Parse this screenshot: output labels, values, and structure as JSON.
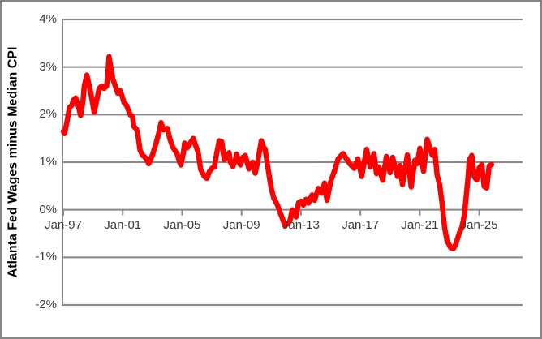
{
  "frame": {
    "background": "#FFFFFF",
    "border_color": "#878787"
  },
  "chart_data": {
    "type": "line",
    "title": "",
    "xlabel": "",
    "ylabel": "Atlanta Fed Wages minus Median CPI",
    "grid": true,
    "legend": "none",
    "ylim": [
      -2,
      4
    ],
    "x_range_months": [
      0,
      371
    ],
    "y_ticks": [
      {
        "value": 4,
        "label": "4%"
      },
      {
        "value": 3,
        "label": "3%"
      },
      {
        "value": 2,
        "label": "2%"
      },
      {
        "value": 1,
        "label": "1%"
      },
      {
        "value": 0,
        "label": "0%"
      },
      {
        "value": -1,
        "label": "-1%"
      },
      {
        "value": -2,
        "label": "-2%"
      }
    ],
    "x_ticks": [
      {
        "month": 0,
        "label": "Jan-97"
      },
      {
        "month": 48,
        "label": "Jan-01"
      },
      {
        "month": 96,
        "label": "Jan-05"
      },
      {
        "month": 144,
        "label": "Jan-09"
      },
      {
        "month": 192,
        "label": "Jan-13"
      },
      {
        "month": 240,
        "label": "Jan-17"
      },
      {
        "month": 288,
        "label": "Jan-21"
      },
      {
        "month": 336,
        "label": "Jan-25"
      }
    ],
    "style": {
      "line_color": "#FF0000",
      "line_width": 6.5,
      "grid_color": "#878787",
      "axis_color": "#878787",
      "text_color": "#3A3A3A"
    },
    "series": [
      {
        "name": "Atlanta Fed Wages minus Median CPI",
        "x_unit": "months since Jan-1997",
        "y_unit": "percent",
        "points": [
          [
            0,
            1.65
          ],
          [
            1,
            1.6
          ],
          [
            3,
            1.85
          ],
          [
            5,
            2.15
          ],
          [
            7,
            2.2
          ],
          [
            8,
            2.3
          ],
          [
            10,
            2.35
          ],
          [
            12,
            2.2
          ],
          [
            14,
            1.98
          ],
          [
            16,
            2.3
          ],
          [
            17,
            2.6
          ],
          [
            19,
            2.83
          ],
          [
            21,
            2.6
          ],
          [
            22,
            2.48
          ],
          [
            25,
            2.05
          ],
          [
            27,
            2.3
          ],
          [
            29,
            2.55
          ],
          [
            31,
            2.6
          ],
          [
            33,
            2.55
          ],
          [
            35,
            2.6
          ],
          [
            36,
            2.85
          ],
          [
            37,
            3.22
          ],
          [
            38,
            3.05
          ],
          [
            40,
            2.75
          ],
          [
            42,
            2.6
          ],
          [
            44,
            2.45
          ],
          [
            46,
            2.5
          ],
          [
            48,
            2.35
          ],
          [
            49,
            2.25
          ],
          [
            51,
            2.2
          ],
          [
            54,
            2.0
          ],
          [
            56,
            1.95
          ],
          [
            57,
            1.75
          ],
          [
            59,
            1.7
          ],
          [
            60,
            1.63
          ],
          [
            62,
            1.25
          ],
          [
            64,
            1.15
          ],
          [
            67,
            1.08
          ],
          [
            69,
            0.97
          ],
          [
            72,
            1.15
          ],
          [
            75,
            1.4
          ],
          [
            77,
            1.6
          ],
          [
            79,
            1.83
          ],
          [
            81,
            1.68
          ],
          [
            83,
            1.7
          ],
          [
            84,
            1.71
          ],
          [
            86,
            1.5
          ],
          [
            88,
            1.34
          ],
          [
            90,
            1.25
          ],
          [
            92,
            1.17
          ],
          [
            94,
            1.0
          ],
          [
            95,
            0.94
          ],
          [
            97,
            1.2
          ],
          [
            98,
            1.4
          ],
          [
            100,
            1.3
          ],
          [
            102,
            1.38
          ],
          [
            105,
            1.5
          ],
          [
            107,
            1.35
          ],
          [
            109,
            1.2
          ],
          [
            111,
            0.85
          ],
          [
            114,
            0.7
          ],
          [
            116,
            0.66
          ],
          [
            118,
            0.8
          ],
          [
            120,
            0.87
          ],
          [
            122,
            0.9
          ],
          [
            124,
            1.2
          ],
          [
            126,
            1.45
          ],
          [
            128,
            1.43
          ],
          [
            130,
            1.05
          ],
          [
            132,
            1.1
          ],
          [
            134,
            1.2
          ],
          [
            135,
            1.0
          ],
          [
            137,
            0.91
          ],
          [
            139,
            1.05
          ],
          [
            140,
            1.17
          ],
          [
            142,
            1.0
          ],
          [
            143,
            0.94
          ],
          [
            145,
            1.1
          ],
          [
            147,
            1.14
          ],
          [
            149,
            0.95
          ],
          [
            150,
            0.86
          ],
          [
            152,
            0.95
          ],
          [
            153,
            1.0
          ],
          [
            155,
            0.77
          ],
          [
            157,
            1.0
          ],
          [
            160,
            1.45
          ],
          [
            162,
            1.3
          ],
          [
            163,
            1.28
          ],
          [
            165,
            0.94
          ],
          [
            167,
            0.6
          ],
          [
            168,
            0.45
          ],
          [
            170,
            0.25
          ],
          [
            173,
            0.1
          ],
          [
            175,
            -0.05
          ],
          [
            177,
            -0.18
          ],
          [
            179,
            -0.33
          ],
          [
            181,
            -0.3
          ],
          [
            183,
            -0.24
          ],
          [
            185,
            0.0
          ],
          [
            187,
            -0.1
          ],
          [
            188,
            -0.15
          ],
          [
            190,
            0.15
          ],
          [
            192,
            0.18
          ],
          [
            194,
            0.1
          ],
          [
            196,
            0.22
          ],
          [
            198,
            0.14
          ],
          [
            201,
            0.31
          ],
          [
            203,
            0.2
          ],
          [
            206,
            0.45
          ],
          [
            209,
            0.35
          ],
          [
            211,
            0.56
          ],
          [
            213,
            0.2
          ],
          [
            216,
            0.59
          ],
          [
            219,
            0.81
          ],
          [
            222,
            1.07
          ],
          [
            226,
            1.18
          ],
          [
            228,
            1.1
          ],
          [
            232,
            0.95
          ],
          [
            235,
            0.87
          ],
          [
            238,
            1.07
          ],
          [
            241,
            0.7
          ],
          [
            245,
            1.27
          ],
          [
            248,
            0.9
          ],
          [
            251,
            1.18
          ],
          [
            253,
            0.76
          ],
          [
            255,
            0.9
          ],
          [
            258,
            0.62
          ],
          [
            261,
            1.12
          ],
          [
            264,
            0.78
          ],
          [
            266,
            1.1
          ],
          [
            270,
            0.7
          ],
          [
            272,
            0.93
          ],
          [
            274,
            0.53
          ],
          [
            278,
            1.15
          ],
          [
            281,
            0.48
          ],
          [
            284,
            1.04
          ],
          [
            286,
            0.97
          ],
          [
            288,
            1.29
          ],
          [
            291,
            0.81
          ],
          [
            294,
            1.48
          ],
          [
            298,
            1.15
          ],
          [
            300,
            1.27
          ],
          [
            302,
            0.73
          ],
          [
            304,
            0.53
          ],
          [
            306,
            0.14
          ],
          [
            308,
            -0.37
          ],
          [
            310,
            -0.65
          ],
          [
            313,
            -0.8
          ],
          [
            315,
            -0.82
          ],
          [
            317,
            -0.73
          ],
          [
            320,
            -0.48
          ],
          [
            322,
            -0.37
          ],
          [
            324,
            -0.11
          ],
          [
            325,
            0.15
          ],
          [
            327,
            0.7
          ],
          [
            328,
            1.05
          ],
          [
            330,
            1.14
          ],
          [
            332,
            0.69
          ],
          [
            334,
            0.63
          ],
          [
            336,
            0.88
          ],
          [
            338,
            0.95
          ],
          [
            340,
            0.49
          ],
          [
            342,
            0.46
          ],
          [
            344,
            0.92
          ],
          [
            346,
            0.95
          ]
        ]
      }
    ]
  }
}
